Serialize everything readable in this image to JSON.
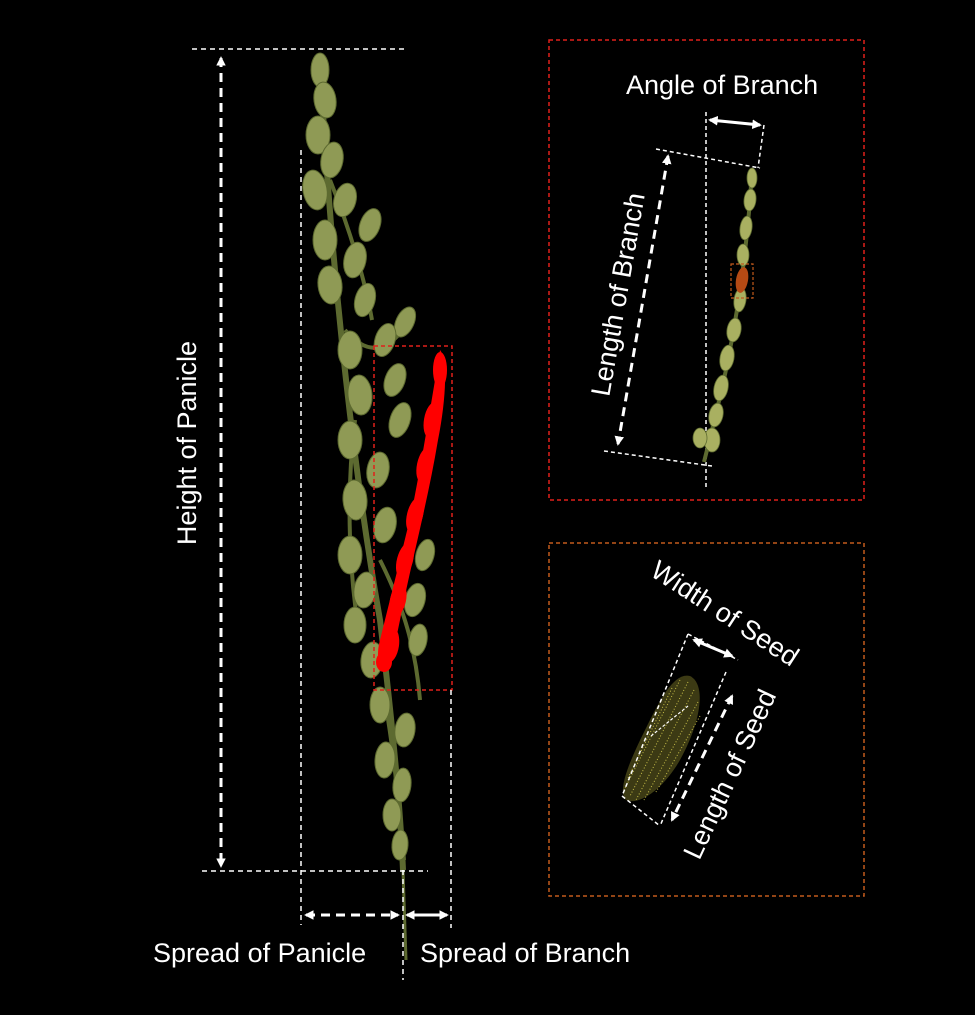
{
  "labels": {
    "height_of_panicle": "Height of Panicle",
    "spread_of_panicle": "Spread of Panicle",
    "spread_of_branch": "Spread of Branch",
    "angle_of_branch": "Angle of Branch",
    "length_of_branch": "Length of Branch",
    "width_of_seed": "Width of Seed",
    "length_of_seed": "Length of Seed"
  },
  "colors": {
    "background": "#000000",
    "annotation": "#ffffff",
    "panicle": "#8f9a55",
    "panicle_dark": "#5d6a30",
    "branch_highlight": "#ff0000",
    "branch_box": "#e0201a",
    "seed_box": "#c25a1c",
    "seed_highlight": "#b64a14",
    "seed_points": "#c9c04a"
  }
}
